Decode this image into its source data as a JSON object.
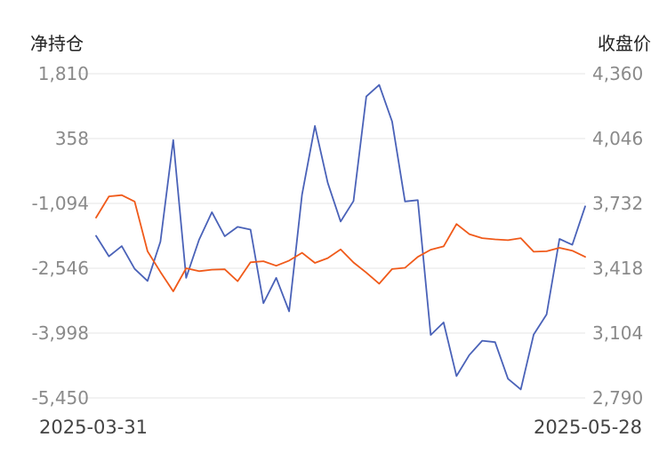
{
  "chart_data": {
    "type": "line",
    "left_axis_title": "净持仓",
    "right_axis_title": "收盘价",
    "x_start_label": "2025-03-31",
    "x_end_label": "2025-05-28",
    "left_ticks": [
      "1,810",
      "358",
      "-1,094",
      "-2,546",
      "-3,998",
      "-5,450"
    ],
    "right_ticks": [
      "4,360",
      "4,046",
      "3,732",
      "3,418",
      "3,104",
      "2,790"
    ],
    "left_range": [
      -5450,
      1810
    ],
    "right_range": [
      2790,
      4360
    ],
    "grid": true,
    "series": [
      {
        "axis": "left",
        "color": "#4a62b8",
        "values": [
          -1820,
          -2280,
          -2050,
          -2560,
          -2830,
          -1950,
          325,
          -2760,
          -1910,
          -1290,
          -1830,
          -1620,
          -1680,
          -3330,
          -2760,
          -3510,
          -900,
          640,
          -630,
          -1500,
          -1040,
          1300,
          1560,
          740,
          -1050,
          -1020,
          -4040,
          -3760,
          -4960,
          -4490,
          -4170,
          -4200,
          -5020,
          -5260,
          -4030,
          -3580,
          -1890,
          -2020,
          -1160
        ]
      },
      {
        "axis": "right",
        "color": "#f05a1a",
        "values": [
          3663,
          3766,
          3772,
          3741,
          3500,
          3400,
          3306,
          3418,
          3404,
          3411,
          3413,
          3355,
          3447,
          3452,
          3430,
          3455,
          3493,
          3444,
          3467,
          3509,
          3446,
          3397,
          3343,
          3414,
          3420,
          3473,
          3508,
          3524,
          3632,
          3583,
          3564,
          3558,
          3554,
          3564,
          3498,
          3500,
          3517,
          3503,
          3473
        ]
      }
    ]
  }
}
